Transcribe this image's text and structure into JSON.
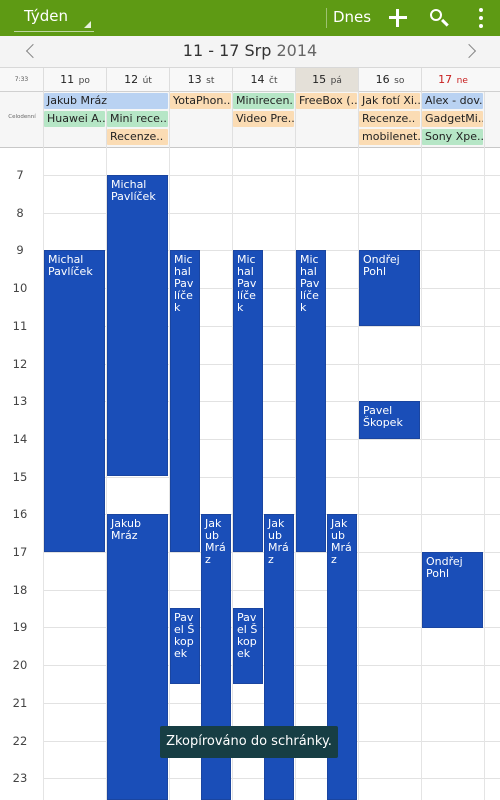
{
  "actionbar": {
    "view_label": "Týden",
    "today_label": "Dnes",
    "icons": [
      "add-icon",
      "search-icon",
      "overflow-icon"
    ],
    "color": "#5e9a14"
  },
  "weeknav": {
    "range": "11 - 17 Srp",
    "year": "2014"
  },
  "dayheader": {
    "current_time": "7:33",
    "days": [
      {
        "num": "11",
        "name": "po"
      },
      {
        "num": "12",
        "name": "út"
      },
      {
        "num": "13",
        "name": "st"
      },
      {
        "num": "14",
        "name": "čt"
      },
      {
        "num": "15",
        "name": "pá"
      },
      {
        "num": "16",
        "name": "so"
      },
      {
        "num": "17",
        "name": "ne"
      }
    ]
  },
  "allday": {
    "label": "Celodenní",
    "events": [
      {
        "text": "Jakub Mráz"
      },
      {
        "text": "YotaPhon.."
      },
      {
        "text": "Minirecen.."
      },
      {
        "text": "FreeBox (.."
      },
      {
        "text": "Jak fotí Xi.."
      },
      {
        "text": "Alex - dov.."
      },
      {
        "text": "Huawei A.."
      },
      {
        "text": "Mini rece.."
      },
      {
        "text": "Video Pre.."
      },
      {
        "text": "Recenze.."
      },
      {
        "text": "GadgetMi.."
      },
      {
        "text": "Recenze.."
      },
      {
        "text": "mobilenet.."
      },
      {
        "text": "Sony Xpe.."
      }
    ]
  },
  "timeline": {
    "hours": [
      "7",
      "8",
      "9",
      "10",
      "11",
      "12",
      "13",
      "14",
      "15",
      "16",
      "17",
      "18",
      "19",
      "20",
      "21",
      "22",
      "23"
    ],
    "events": [
      {
        "text": "Michal Pavlíček"
      },
      {
        "text": "Michal Pavlíček"
      },
      {
        "text": "Jakub Mráz"
      },
      {
        "text": "Michal Pavlíček"
      },
      {
        "text": "Pavel Škopek"
      },
      {
        "text": "Jakub Mráz"
      },
      {
        "text": "Michal Pavlíček"
      },
      {
        "text": "Pavel Škopek"
      },
      {
        "text": "Jakub Mráz"
      },
      {
        "text": "Michal Pavlíček"
      },
      {
        "text": "Jakub Mráz"
      },
      {
        "text": "Ondřej Pohl"
      },
      {
        "text": "Pavel Škopek"
      },
      {
        "text": "Ondřej Pohl"
      }
    ]
  },
  "toast": {
    "text": "Zkopírováno do schránky."
  },
  "colors": {
    "event": "#1a4eb8",
    "allday_blue": "#b9d2f2",
    "allday_green": "#b6e6c6",
    "allday_orange": "#fbdcb4",
    "sunday": "#c81e1e"
  }
}
